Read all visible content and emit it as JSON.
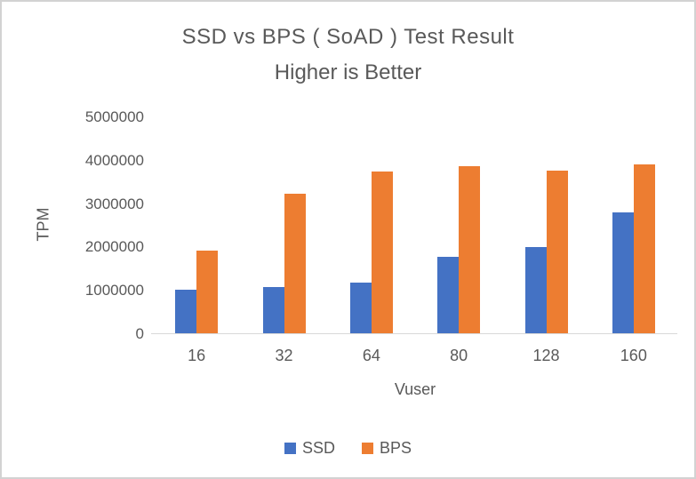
{
  "window": {
    "background": "#ffffff",
    "border_color": "#d2d2d2"
  },
  "chart_data": {
    "type": "bar",
    "title": "SSD vs BPS ( SoAD ) Test Result",
    "subtitle": "Higher is Better",
    "xlabel": "Vuser",
    "ylabel": "TPM",
    "categories": [
      "16",
      "32",
      "64",
      "80",
      "128",
      "160"
    ],
    "series": [
      {
        "name": "SSD",
        "color": "#4472C4",
        "values": [
          1030000,
          1090000,
          1180000,
          1780000,
          2000000,
          2800000
        ]
      },
      {
        "name": "BPS",
        "color": "#ED7D31",
        "values": [
          1920000,
          3230000,
          3740000,
          3870000,
          3770000,
          3910000
        ]
      }
    ],
    "ylim": [
      0,
      5000000
    ],
    "yticks": [
      0,
      1000000,
      2000000,
      3000000,
      4000000,
      5000000
    ],
    "grid": false,
    "legend_position": "bottom",
    "axis_line_color": "#d9d9d9",
    "text_color": "#595959"
  }
}
